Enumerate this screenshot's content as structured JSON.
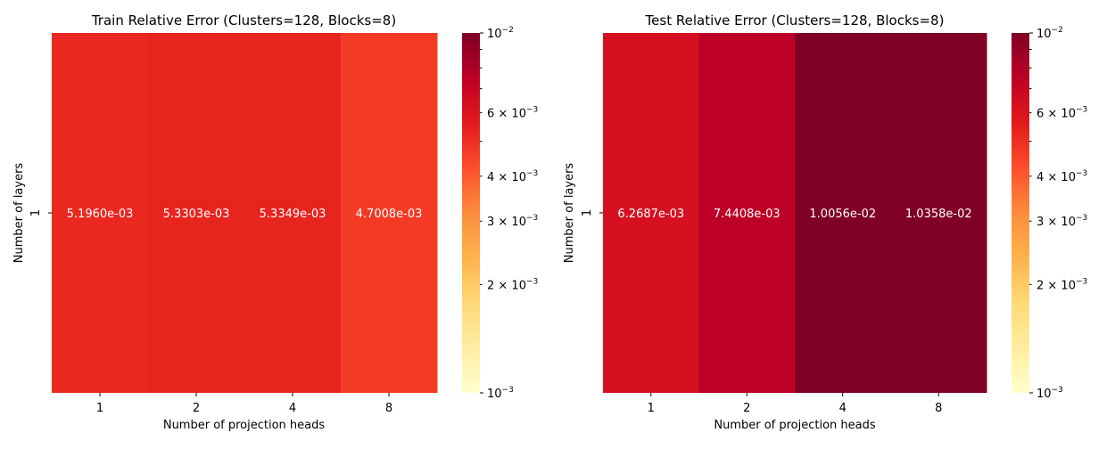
{
  "chart_data": [
    {
      "type": "heatmap",
      "title": "Train Relative Error (Clusters=128, Blocks=8)",
      "xlabel": "Number of projection heads",
      "ylabel": "Number of layers",
      "x_categories": [
        "1",
        "2",
        "4",
        "8"
      ],
      "y_categories": [
        "1"
      ],
      "values": [
        [
          0.005196,
          0.0053303,
          0.0053349,
          0.0047008
        ]
      ],
      "cell_labels": [
        [
          "5.1960e-03",
          "5.3303e-03",
          "5.3349e-03",
          "4.7008e-03"
        ]
      ],
      "colorscale": "YlOrRd",
      "color_scale_type": "log",
      "color_range": [
        0.001,
        0.01
      ],
      "colorbar_ticks": [
        {
          "value": 0.01,
          "mantissa": "",
          "exp": "−2"
        },
        {
          "value": 0.006,
          "mantissa": "6 × ",
          "exp": "−3"
        },
        {
          "value": 0.004,
          "mantissa": "4 × ",
          "exp": "−3"
        },
        {
          "value": 0.003,
          "mantissa": "3 × ",
          "exp": "−3"
        },
        {
          "value": 0.002,
          "mantissa": "2 × ",
          "exp": "−3"
        },
        {
          "value": 0.001,
          "mantissa": "",
          "exp": "−3"
        }
      ]
    },
    {
      "type": "heatmap",
      "title": "Test Relative Error (Clusters=128, Blocks=8)",
      "xlabel": "Number of projection heads",
      "ylabel": "Number of layers",
      "x_categories": [
        "1",
        "2",
        "4",
        "8"
      ],
      "y_categories": [
        "1"
      ],
      "values": [
        [
          0.0062687,
          0.0074408,
          0.010056,
          0.010358
        ]
      ],
      "cell_labels": [
        [
          "6.2687e-03",
          "7.4408e-03",
          "1.0056e-02",
          "1.0358e-02"
        ]
      ],
      "colorscale": "YlOrRd",
      "color_scale_type": "log",
      "color_range": [
        0.001,
        0.01
      ],
      "colorbar_ticks": [
        {
          "value": 0.01,
          "mantissa": "",
          "exp": "−2"
        },
        {
          "value": 0.006,
          "mantissa": "6 × ",
          "exp": "−3"
        },
        {
          "value": 0.004,
          "mantissa": "4 × ",
          "exp": "−3"
        },
        {
          "value": 0.003,
          "mantissa": "3 × ",
          "exp": "−3"
        },
        {
          "value": 0.002,
          "mantissa": "2 × ",
          "exp": "−3"
        },
        {
          "value": 0.001,
          "mantissa": "",
          "exp": "−3"
        }
      ]
    }
  ]
}
